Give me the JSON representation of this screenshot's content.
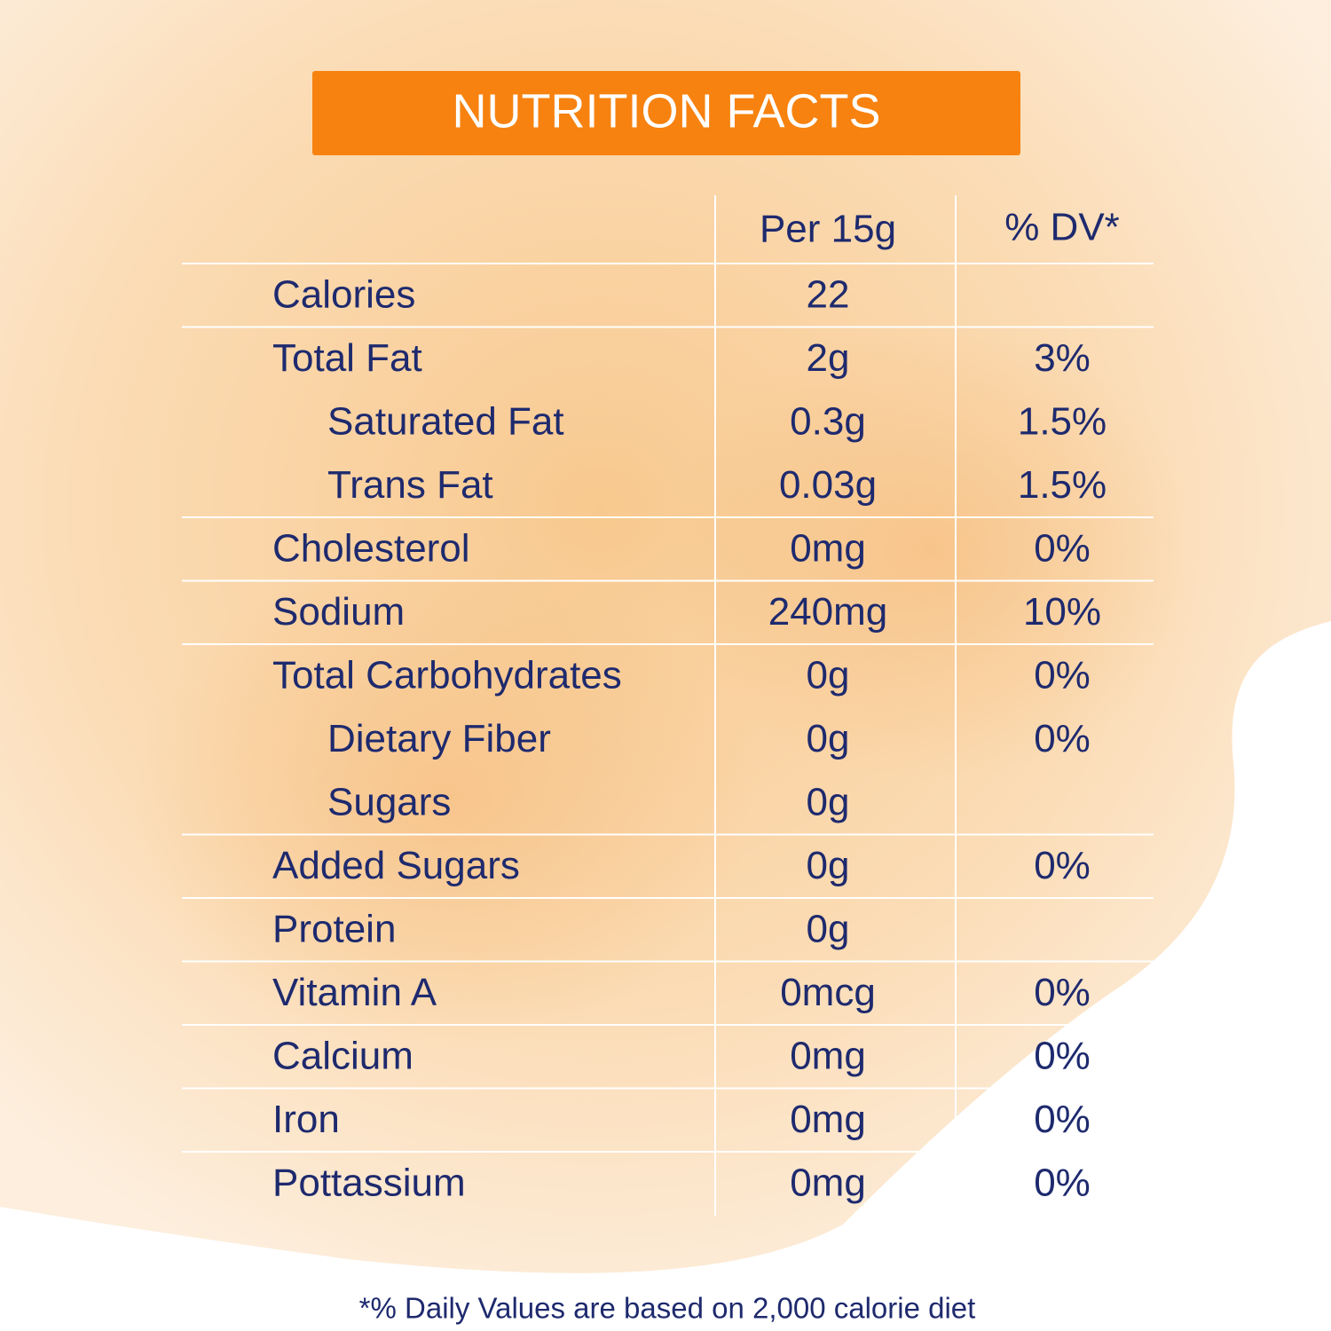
{
  "header": {
    "title": "NUTRITION FACTS"
  },
  "table": {
    "columns": [
      "Per 15g",
      "% DV*"
    ],
    "rows": [
      {
        "label": "Calories",
        "amount": "22"
      },
      {
        "label": "Total Fat",
        "amount": "2g",
        "dv": "3%",
        "sub_items": [
          {
            "label": "Saturated Fat",
            "amount": "0.3g",
            "dv": "1.5%"
          },
          {
            "label": "Trans Fat",
            "amount": "0.03g",
            "dv": "1.5%"
          }
        ]
      },
      {
        "label": "Cholesterol",
        "amount": "0mg",
        "dv": "0%"
      },
      {
        "label": "Sodium",
        "amount": "240mg",
        "dv": "10%"
      },
      {
        "label": "Total Carbohydrates",
        "amount": "0g",
        "dv": "0%",
        "sub_items": [
          {
            "label": "Dietary Fiber",
            "amount": "0g",
            "dv": "0%"
          },
          {
            "label": "Sugars",
            "amount": "0g"
          }
        ]
      },
      {
        "label": "Added Sugars",
        "amount": "0g",
        "dv": "0%"
      },
      {
        "label": "Protein",
        "amount": "0g"
      },
      {
        "label": "Vitamin A",
        "amount": "0mcg",
        "dv": "0%"
      },
      {
        "label": "Calcium",
        "amount": "0mg",
        "dv": "0%"
      },
      {
        "label": "Iron",
        "amount": "0mg",
        "dv": "0%"
      },
      {
        "label": "Pottassium",
        "amount": "0mg",
        "dv": "0%"
      }
    ]
  },
  "footnote": "*% Daily Values are based on 2,000 calorie diet"
}
